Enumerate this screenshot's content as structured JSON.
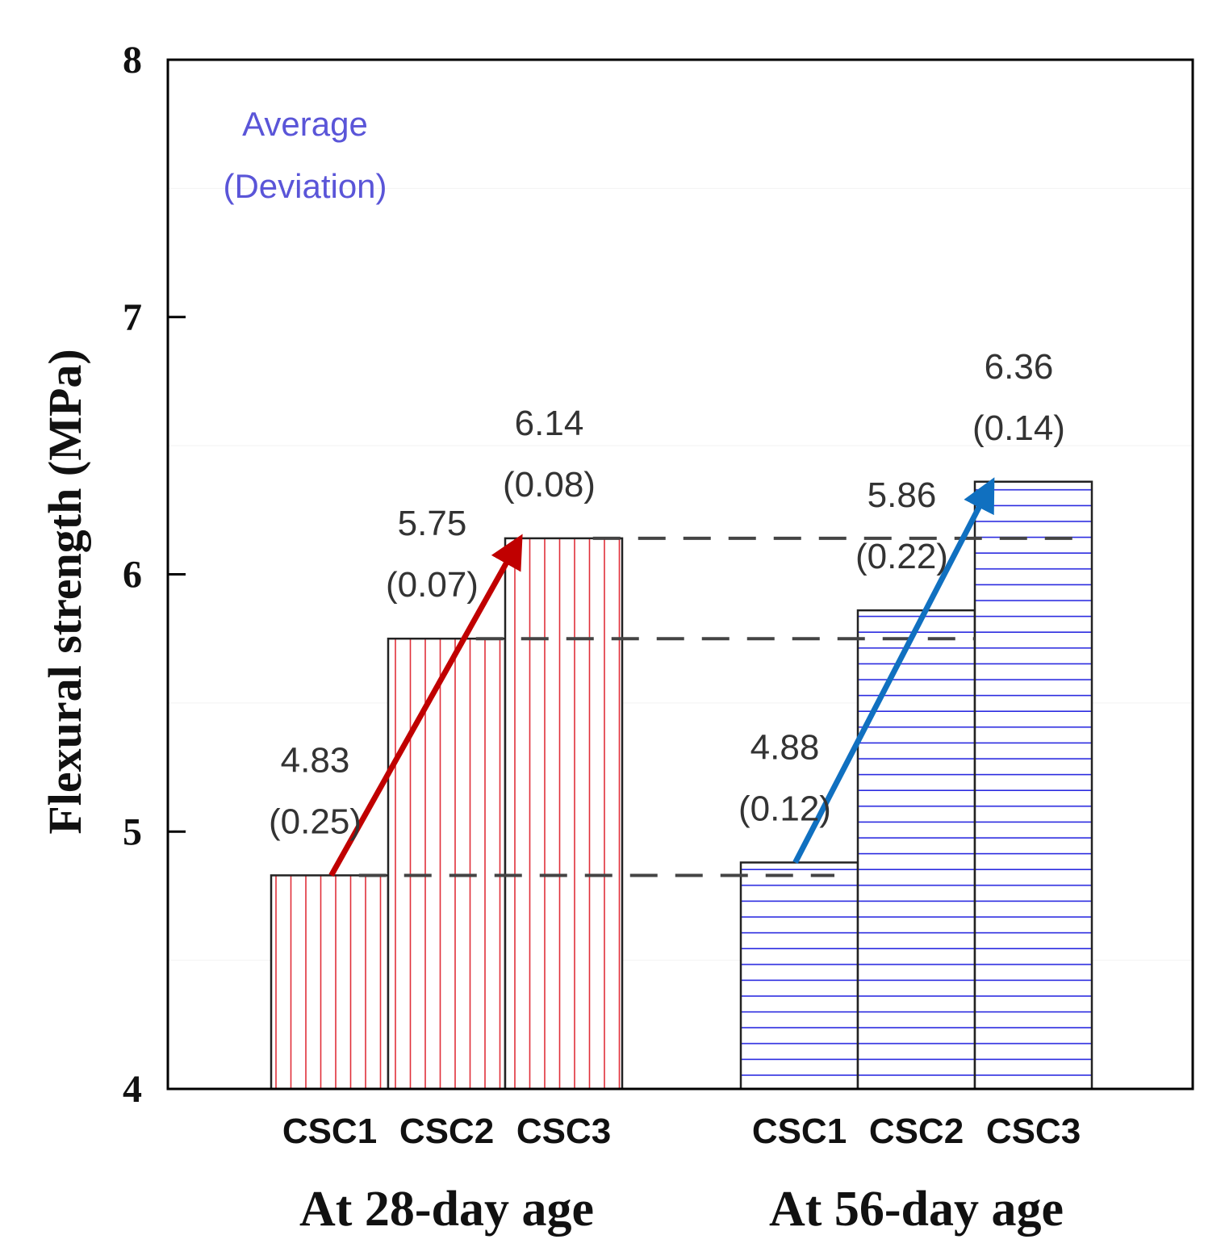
{
  "chart_data": {
    "type": "bar",
    "ylabel": "Flexural strength (MPa)",
    "ylim": [
      4,
      8
    ],
    "yticks": [
      "4",
      "5",
      "6",
      "7",
      "8"
    ],
    "legend_text": {
      "line1": "Average",
      "line2": "(Deviation)"
    },
    "groups": [
      {
        "name": "At 28-day age",
        "color": "#e0303a",
        "pattern": "vertical",
        "arrow_color": "#c00000",
        "categories": [
          "CSC1",
          "CSC2",
          "CSC3"
        ],
        "values": [
          4.83,
          5.75,
          6.14
        ],
        "value_labels": [
          "4.83",
          "5.75",
          "6.14"
        ],
        "deviation_labels": [
          "(0.25)",
          "(0.07)",
          "(0.08)"
        ]
      },
      {
        "name": "At 56-day age",
        "color": "#2a2ae0",
        "pattern": "horizontal",
        "arrow_color": "#1070c0",
        "categories": [
          "CSC1",
          "CSC2",
          "CSC3"
        ],
        "values": [
          4.88,
          5.86,
          6.36
        ],
        "value_labels": [
          "4.88",
          "5.86",
          "6.36"
        ],
        "deviation_labels": [
          "(0.12)",
          "(0.22)",
          "(0.14)"
        ]
      }
    ],
    "reference_lines": [
      4.83,
      5.75,
      6.14
    ]
  }
}
